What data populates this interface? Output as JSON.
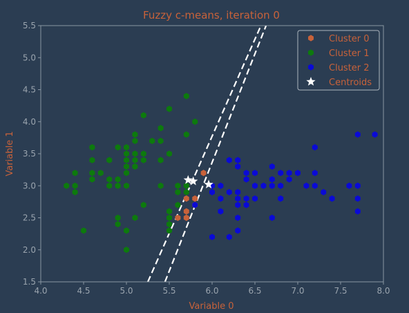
{
  "chart_data": {
    "type": "scatter",
    "title": "Fuzzy c-means, iteration 0",
    "xlabel": "Variable 0",
    "ylabel": "Variable 1",
    "xlim": [
      4.0,
      8.0
    ],
    "ylim": [
      1.5,
      5.5
    ],
    "xticks": [
      4.0,
      4.5,
      5.0,
      5.5,
      6.0,
      6.5,
      7.0,
      7.5,
      8.0
    ],
    "yticks": [
      1.5,
      2.0,
      2.5,
      3.0,
      3.5,
      4.0,
      4.5,
      5.0,
      5.5
    ],
    "xtick_labels": [
      "4.0",
      "4.5",
      "5.0",
      "5.5",
      "6.0",
      "6.5",
      "7.0",
      "7.5",
      "8.0"
    ],
    "ytick_labels": [
      "1.5",
      "2.0",
      "2.5",
      "3.0",
      "3.5",
      "4.0",
      "4.5",
      "5.0",
      "5.5"
    ],
    "grid": false,
    "legend_position": "top-right",
    "colors": {
      "background": "#2b3d52",
      "axis": "#8a96a3",
      "text": "#c8623a",
      "tick_text": "#9aa4ae",
      "boundary": "#ffffff"
    },
    "series": [
      {
        "name": "Cluster 0",
        "color": "#c8623a",
        "marker": "hexagon",
        "points": [
          [
            5.6,
            2.5
          ],
          [
            5.7,
            2.5
          ],
          [
            5.7,
            2.6
          ],
          [
            5.8,
            2.7
          ],
          [
            5.7,
            2.8
          ],
          [
            5.8,
            2.8
          ],
          [
            5.9,
            3.2
          ]
        ]
      },
      {
        "name": "Cluster 1",
        "color": "#0d7a0d",
        "marker": "hexagon",
        "points": [
          [
            4.3,
            3.0
          ],
          [
            4.4,
            2.9
          ],
          [
            4.4,
            3.0
          ],
          [
            4.4,
            3.2
          ],
          [
            4.5,
            2.3
          ],
          [
            4.6,
            3.1
          ],
          [
            4.6,
            3.2
          ],
          [
            4.6,
            3.4
          ],
          [
            4.6,
            3.6
          ],
          [
            4.7,
            3.2
          ],
          [
            4.8,
            3.0
          ],
          [
            4.8,
            3.1
          ],
          [
            4.8,
            3.4
          ],
          [
            4.9,
            2.4
          ],
          [
            4.9,
            2.5
          ],
          [
            4.9,
            3.0
          ],
          [
            4.9,
            3.1
          ],
          [
            4.9,
            3.6
          ],
          [
            5.0,
            2.0
          ],
          [
            5.0,
            2.3
          ],
          [
            5.0,
            3.0
          ],
          [
            5.0,
            3.2
          ],
          [
            5.0,
            3.3
          ],
          [
            5.0,
            3.4
          ],
          [
            5.0,
            3.5
          ],
          [
            5.0,
            3.6
          ],
          [
            5.1,
            2.5
          ],
          [
            5.1,
            3.3
          ],
          [
            5.1,
            3.4
          ],
          [
            5.1,
            3.5
          ],
          [
            5.1,
            3.7
          ],
          [
            5.1,
            3.8
          ],
          [
            5.2,
            2.7
          ],
          [
            5.2,
            3.4
          ],
          [
            5.2,
            3.5
          ],
          [
            5.2,
            4.1
          ],
          [
            5.3,
            3.7
          ],
          [
            5.4,
            3.0
          ],
          [
            5.4,
            3.4
          ],
          [
            5.4,
            3.7
          ],
          [
            5.4,
            3.9
          ],
          [
            5.5,
            2.3
          ],
          [
            5.5,
            2.4
          ],
          [
            5.5,
            2.5
          ],
          [
            5.5,
            2.6
          ],
          [
            5.5,
            3.5
          ],
          [
            5.5,
            4.2
          ],
          [
            5.6,
            2.7
          ],
          [
            5.6,
            2.9
          ],
          [
            5.6,
            3.0
          ],
          [
            5.7,
            2.9
          ],
          [
            5.7,
            3.0
          ],
          [
            5.7,
            3.8
          ],
          [
            5.7,
            4.4
          ],
          [
            5.8,
            4.0
          ]
        ]
      },
      {
        "name": "Cluster 2",
        "color": "#0a0ad6",
        "marker": "hexagon",
        "points": [
          [
            5.8,
            2.7
          ],
          [
            6.0,
            2.2
          ],
          [
            6.0,
            2.9
          ],
          [
            6.0,
            3.0
          ],
          [
            6.1,
            2.6
          ],
          [
            6.1,
            2.8
          ],
          [
            6.1,
            3.0
          ],
          [
            6.2,
            2.2
          ],
          [
            6.2,
            2.9
          ],
          [
            6.2,
            3.4
          ],
          [
            6.3,
            2.3
          ],
          [
            6.3,
            2.5
          ],
          [
            6.3,
            2.7
          ],
          [
            6.3,
            2.8
          ],
          [
            6.3,
            2.9
          ],
          [
            6.3,
            3.3
          ],
          [
            6.3,
            3.4
          ],
          [
            6.4,
            2.7
          ],
          [
            6.4,
            2.8
          ],
          [
            6.4,
            3.1
          ],
          [
            6.4,
            3.2
          ],
          [
            6.5,
            2.8
          ],
          [
            6.5,
            3.0
          ],
          [
            6.5,
            3.2
          ],
          [
            6.6,
            3.0
          ],
          [
            6.7,
            2.5
          ],
          [
            6.7,
            3.0
          ],
          [
            6.7,
            3.1
          ],
          [
            6.7,
            3.3
          ],
          [
            6.8,
            2.8
          ],
          [
            6.8,
            3.0
          ],
          [
            6.8,
            3.2
          ],
          [
            6.9,
            3.1
          ],
          [
            6.9,
            3.2
          ],
          [
            7.0,
            3.2
          ],
          [
            7.1,
            3.0
          ],
          [
            7.2,
            3.0
          ],
          [
            7.2,
            3.2
          ],
          [
            7.2,
            3.6
          ],
          [
            7.3,
            2.9
          ],
          [
            7.4,
            2.8
          ],
          [
            7.6,
            3.0
          ],
          [
            7.7,
            2.6
          ],
          [
            7.7,
            2.8
          ],
          [
            7.7,
            3.0
          ],
          [
            7.7,
            3.8
          ],
          [
            7.9,
            3.8
          ]
        ]
      },
      {
        "name": "Centroids",
        "color": "#ffffff",
        "marker": "star",
        "points": [
          [
            5.72,
            3.09
          ],
          [
            5.78,
            3.07
          ],
          [
            5.96,
            3.02
          ]
        ]
      }
    ],
    "boundaries": [
      {
        "points": [
          [
            5.25,
            1.5
          ],
          [
            6.57,
            5.5
          ]
        ]
      },
      {
        "points": [
          [
            5.45,
            1.5
          ],
          [
            6.63,
            5.5
          ]
        ]
      }
    ]
  }
}
